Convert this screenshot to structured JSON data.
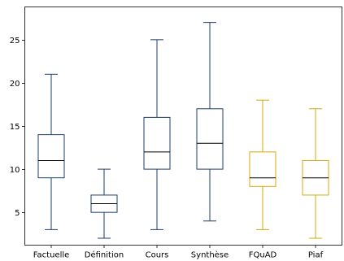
{
  "chart_data": {
    "type": "boxplot",
    "title": "",
    "xlabel": "",
    "ylabel": "",
    "categories": [
      "Factuelle",
      "Définition",
      "Cours",
      "Synthèse",
      "FQuAD",
      "Piaf"
    ],
    "boxes": [
      {
        "label": "Factuelle",
        "whisker_low": 3,
        "q1": 9,
        "median": 11,
        "q3": 14,
        "whisker_high": 21,
        "color": "#1f3d6b"
      },
      {
        "label": "Définition",
        "whisker_low": 2,
        "q1": 5,
        "median": 6,
        "q3": 7,
        "whisker_high": 10,
        "color": "#1f3d6b"
      },
      {
        "label": "Cours",
        "whisker_low": 3,
        "q1": 10,
        "median": 12,
        "q3": 16,
        "whisker_high": 25,
        "color": "#1f3d6b"
      },
      {
        "label": "Synthèse",
        "whisker_low": 4,
        "q1": 10,
        "median": 13,
        "q3": 17,
        "whisker_high": 27,
        "color": "#1f3d6b"
      },
      {
        "label": "FQuAD",
        "whisker_low": 3,
        "q1": 8,
        "median": 9,
        "q3": 12,
        "whisker_high": 18,
        "color": "#d4a90c"
      },
      {
        "label": "Piaf",
        "whisker_low": 2,
        "q1": 7,
        "median": 9,
        "q3": 11,
        "whisker_high": 17,
        "color": "#d4a90c"
      }
    ],
    "y_ticks": [
      5,
      10,
      15,
      20,
      25
    ],
    "ylim": [
      1.2,
      28.8
    ],
    "median_color": "#000000",
    "grid": false,
    "legend": "none"
  }
}
